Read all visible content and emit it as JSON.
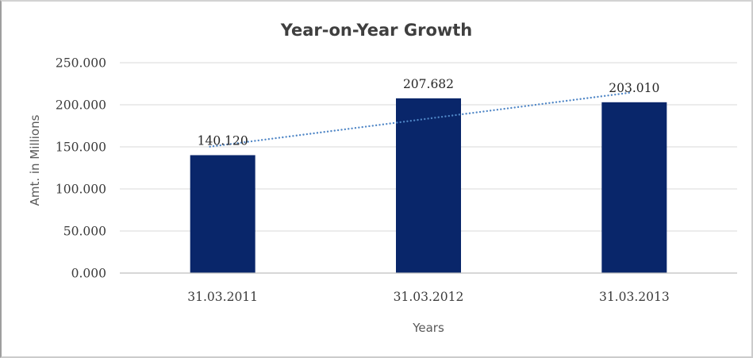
{
  "chart_data": {
    "type": "bar",
    "title": "Year-on-Year Growth",
    "xlabel": "Years",
    "ylabel": "Amt. in Millions",
    "categories": [
      "31.03.2011",
      "31.03.2012",
      "31.03.2013"
    ],
    "values": [
      140.12,
      207.682,
      203.01
    ],
    "data_labels": [
      "140.120",
      "207.682",
      "203.010"
    ],
    "ylim": [
      0,
      250
    ],
    "y_tick_values": [
      0,
      50,
      100,
      150,
      200,
      250
    ],
    "y_tick_labels": [
      "0.000",
      "50.000",
      "100.000",
      "150.000",
      "200.000",
      "250.000"
    ],
    "grid": true,
    "legend": false,
    "trendline": {
      "type": "linear",
      "style": "dotted"
    },
    "colors": {
      "bar": "#09266a",
      "trendline": "#4f86c6",
      "gridline": "#d9d9d9",
      "axis_line": "#bfbfbf",
      "title_text": "#3f3f3f",
      "axis_title_text": "#595959",
      "tick_text": "#3b3b3b",
      "data_label_text": "#262626"
    }
  }
}
